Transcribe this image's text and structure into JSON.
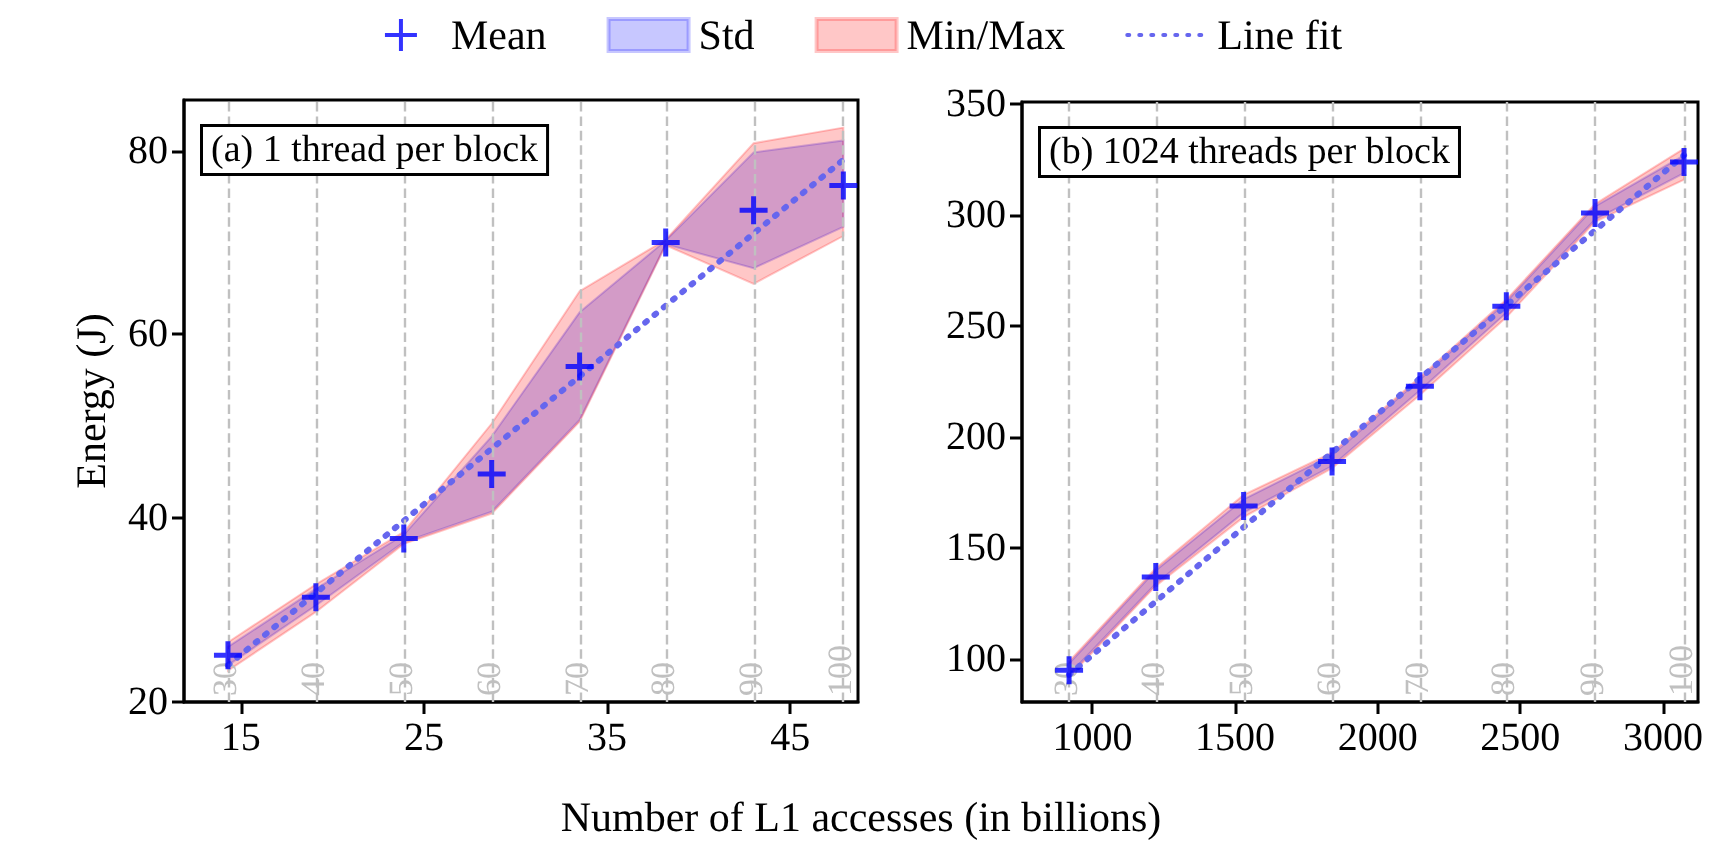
{
  "chart_data": [
    {
      "type": "line",
      "ylabel": "Energy (J)",
      "xlabel": "Number of L1 accesses (in billions)",
      "legend": "top",
      "grid": false,
      "xlim": [
        11.9,
        48.7
      ],
      "xticks": [
        15,
        25,
        35,
        45
      ],
      "ylim": [
        20,
        85.5
      ],
      "yticks": [
        20,
        40,
        60,
        80
      ],
      "annotations": [
        "(a) 1 thread per block",
        {
          "text": "30",
          "x": 14.3,
          "y": 20
        },
        {
          "text": "40",
          "x": 19.1,
          "y": 20
        },
        {
          "text": "50",
          "x": 23.9,
          "y": 20
        },
        {
          "text": "60",
          "x": 28.7,
          "y": 20
        },
        {
          "text": "70",
          "x": 33.5,
          "y": 20
        },
        {
          "text": "80",
          "x": 38.2,
          "y": 20
        },
        {
          "text": "90",
          "x": 43.0,
          "y": 20
        },
        {
          "text": "100",
          "x": 47.9,
          "y": 20
        }
      ],
      "series": [
        {
          "name": "Mean",
          "type": "scatter",
          "marker": "cross",
          "color": "#0000ff",
          "x": [
            14.3,
            19.1,
            23.9,
            28.7,
            33.5,
            38.2,
            43.0,
            47.9
          ],
          "values": [
            25.1,
            31.4,
            37.8,
            44.8,
            56.5,
            70.0,
            73.5,
            76.2
          ]
        },
        {
          "name": "Std",
          "type": "area",
          "color": "#0000ff",
          "x": [
            14.3,
            19.1,
            23.9,
            28.7,
            33.5,
            38.2,
            43.0,
            47.9
          ],
          "values": [
            null,
            null,
            null,
            null,
            null,
            null,
            null,
            null
          ],
          "lower": [
            24.0,
            30.5,
            37.4,
            40.7,
            50.7,
            69.8,
            67.2,
            71.7
          ],
          "upper": [
            26.0,
            32.3,
            38.2,
            48.9,
            62.4,
            70.2,
            79.8,
            81.1
          ]
        },
        {
          "name": "Min/Max",
          "type": "area",
          "color": "#ff0000",
          "x": [
            14.3,
            19.1,
            23.9,
            28.7,
            33.5,
            38.2,
            43.0,
            47.9
          ],
          "values": [
            null,
            null,
            null,
            null,
            null,
            null,
            null,
            null
          ],
          "lower": [
            23.4,
            29.8,
            37.2,
            40.5,
            50.5,
            69.7,
            65.5,
            70.7
          ],
          "upper": [
            26.5,
            32.8,
            38.5,
            50.3,
            64.7,
            70.3,
            80.8,
            82.5
          ]
        },
        {
          "name": "Line fit",
          "type": "line",
          "color": "#6666ee",
          "line_style": "dotted",
          "marker": "none",
          "x": [
            14.3,
            47.9
          ],
          "values": [
            24.0,
            79.0
          ]
        }
      ],
      "ref_lines": [
        {
          "axis": "x",
          "value": 14.3,
          "color": "#c0c0c0",
          "line_style": "dashed"
        },
        {
          "axis": "x",
          "value": 19.1,
          "color": "#c0c0c0",
          "line_style": "dashed"
        },
        {
          "axis": "x",
          "value": 23.9,
          "color": "#c0c0c0",
          "line_style": "dashed"
        },
        {
          "axis": "x",
          "value": 28.7,
          "color": "#c0c0c0",
          "line_style": "dashed"
        },
        {
          "axis": "x",
          "value": 33.5,
          "color": "#c0c0c0",
          "line_style": "dashed"
        },
        {
          "axis": "x",
          "value": 38.2,
          "color": "#c0c0c0",
          "line_style": "dashed"
        },
        {
          "axis": "x",
          "value": 43.0,
          "color": "#c0c0c0",
          "line_style": "dashed"
        },
        {
          "axis": "x",
          "value": 47.9,
          "color": "#c0c0c0",
          "line_style": "dashed"
        }
      ]
    },
    {
      "type": "line",
      "grid": false,
      "xlim": [
        753,
        3123
      ],
      "xticks": [
        1000,
        1500,
        2000,
        2500,
        3000
      ],
      "ylim": [
        80.7,
        351
      ],
      "yticks": [
        100,
        150,
        200,
        250,
        300,
        350
      ],
      "annotations": [
        "(b) 1024 threads per block",
        {
          "text": "30",
          "x": 918,
          "y": 80.7
        },
        {
          "text": "40",
          "x": 1222,
          "y": 80.7
        },
        {
          "text": "50",
          "x": 1530,
          "y": 80.7
        },
        {
          "text": "60",
          "x": 1840,
          "y": 80.7
        },
        {
          "text": "70",
          "x": 2148,
          "y": 80.7
        },
        {
          "text": "80",
          "x": 2451,
          "y": 80.7
        },
        {
          "text": "90",
          "x": 2762,
          "y": 80.7
        },
        {
          "text": "100",
          "x": 3074,
          "y": 80.7
        }
      ],
      "series": [
        {
          "type": "scatter",
          "marker": "cross",
          "color": "#0000ff",
          "x": [
            918,
            1222,
            1530,
            1840,
            2148,
            2451,
            2762,
            3074
          ],
          "values": [
            95,
            137,
            169,
            189,
            223,
            259,
            301,
            324
          ]
        },
        {
          "type": "area",
          "color": "#0000ff",
          "x": [
            918,
            1222,
            1530,
            1840,
            2148,
            2451,
            2762,
            3074
          ],
          "values": [
            null,
            null,
            null,
            null,
            null,
            null,
            null,
            null
          ],
          "lower": [
            93,
            134,
            166,
            187,
            221,
            256,
            298,
            319
          ],
          "upper": [
            98,
            140,
            172,
            192,
            226,
            261,
            304,
            327
          ]
        },
        {
          "type": "area",
          "color": "#ff0000",
          "x": [
            918,
            1222,
            1530,
            1840,
            2148,
            2451,
            2762,
            3074
          ],
          "values": [
            null,
            null,
            null,
            null,
            null,
            null,
            null,
            null
          ],
          "lower": [
            92,
            133,
            164,
            186,
            219,
            254,
            297,
            316
          ],
          "upper": [
            99,
            141,
            174,
            193,
            227,
            262,
            305,
            330
          ]
        },
        {
          "type": "line",
          "color": "#6666ee",
          "line_style": "dotted",
          "marker": "none",
          "x": [
            918,
            3074
          ],
          "values": [
            93,
            327
          ]
        }
      ],
      "ref_lines": [
        {
          "axis": "x",
          "value": 918,
          "color": "#c0c0c0",
          "line_style": "dashed"
        },
        {
          "axis": "x",
          "value": 1222,
          "color": "#c0c0c0",
          "line_style": "dashed"
        },
        {
          "axis": "x",
          "value": 1530,
          "color": "#c0c0c0",
          "line_style": "dashed"
        },
        {
          "axis": "x",
          "value": 1840,
          "color": "#c0c0c0",
          "line_style": "dashed"
        },
        {
          "axis": "x",
          "value": 2148,
          "color": "#c0c0c0",
          "line_style": "dashed"
        },
        {
          "axis": "x",
          "value": 2451,
          "color": "#c0c0c0",
          "line_style": "dashed"
        },
        {
          "axis": "x",
          "value": 2762,
          "color": "#c0c0c0",
          "line_style": "dashed"
        },
        {
          "axis": "x",
          "value": 3074,
          "color": "#c0c0c0",
          "line_style": "dashed"
        }
      ]
    }
  ]
}
